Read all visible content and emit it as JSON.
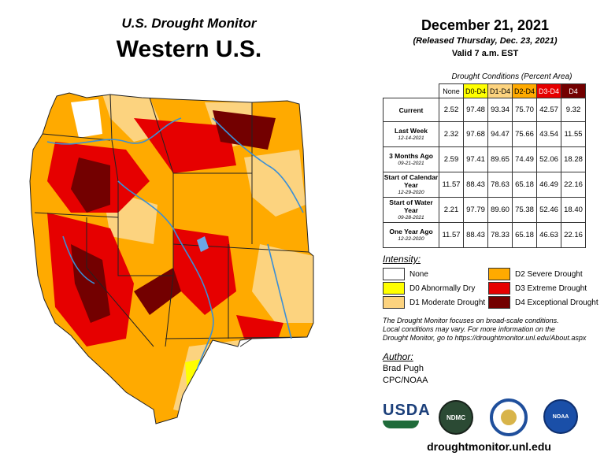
{
  "header": {
    "subtitle": "U.S. Drought Monitor",
    "title": "Western U.S."
  },
  "release": {
    "date": "December 21, 2021",
    "released": "(Released Thursday, Dec. 23, 2021)",
    "valid": "Valid 7 a.m. EST"
  },
  "table": {
    "title": "Drought Conditions (Percent Area)",
    "columns": [
      "None",
      "D0-D4",
      "D1-D4",
      "D2-D4",
      "D3-D4",
      "D4"
    ],
    "rows": [
      {
        "label": "Current",
        "date": "",
        "values": [
          "2.52",
          "97.48",
          "93.34",
          "75.70",
          "42.57",
          "9.32"
        ]
      },
      {
        "label": "Last Week",
        "date": "12-14-2021",
        "values": [
          "2.32",
          "97.68",
          "94.47",
          "75.66",
          "43.54",
          "11.55"
        ]
      },
      {
        "label": "3 Months Ago",
        "date": "09-21-2021",
        "values": [
          "2.59",
          "97.41",
          "89.65",
          "74.49",
          "52.06",
          "18.28"
        ]
      },
      {
        "label": "Start of Calendar Year",
        "date": "12-29-2020",
        "values": [
          "11.57",
          "88.43",
          "78.63",
          "65.18",
          "46.49",
          "22.16"
        ]
      },
      {
        "label": "Start of Water Year",
        "date": "09-28-2021",
        "values": [
          "2.21",
          "97.79",
          "89.60",
          "75.38",
          "52.46",
          "18.40"
        ]
      },
      {
        "label": "One Year Ago",
        "date": "12-22-2020",
        "values": [
          "11.57",
          "88.43",
          "78.33",
          "65.18",
          "46.63",
          "22.16"
        ]
      }
    ],
    "header_colors": [
      "#ffffff",
      "#ffff00",
      "#fcd37f",
      "#ffaa00",
      "#e60000",
      "#730000"
    ]
  },
  "legend": {
    "title": "Intensity:",
    "items": [
      {
        "label": "None",
        "color": "#ffffff"
      },
      {
        "label": "D0 Abnormally Dry",
        "color": "#ffff00"
      },
      {
        "label": "D1 Moderate Drought",
        "color": "#fcd37f"
      },
      {
        "label": "D2 Severe Drought",
        "color": "#ffaa00"
      },
      {
        "label": "D3 Extreme Drought",
        "color": "#e60000"
      },
      {
        "label": "D4 Exceptional Drought",
        "color": "#730000"
      }
    ]
  },
  "note": {
    "line1": "The Drought Monitor focuses on broad-scale conditions.",
    "line2": "Local conditions may vary. For more information on the",
    "line3": "Drought Monitor, go to https://droughtmonitor.unl.edu/About.aspx"
  },
  "author": {
    "heading": "Author:",
    "name": "Brad Pugh",
    "org": "CPC/NOAA"
  },
  "logos": {
    "usda": "USDA",
    "ndmc": "NDMC",
    "noaa": "NOAA"
  },
  "footer": {
    "url": "droughtmonitor.unl.edu"
  }
}
